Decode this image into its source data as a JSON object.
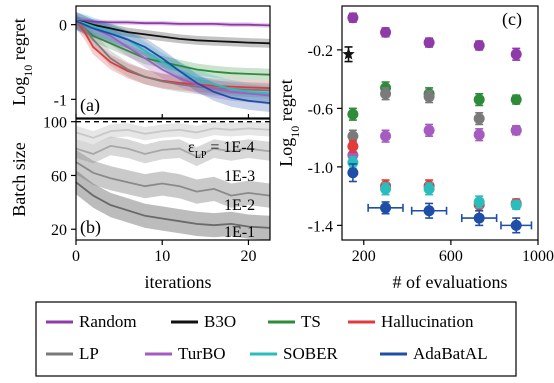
{
  "colors": {
    "Random": "#8e3aa8",
    "B3O": "#111111",
    "TS": "#2e8b3a",
    "Hallucination": "#e03a3a",
    "LP": "#7a7a7a",
    "TurBO": "#a55bbf",
    "SOBER": "#2bbcbc",
    "AdaBatAL": "#1f4ea8"
  },
  "legend": {
    "entries": [
      "Random",
      "B3O",
      "TS",
      "Hallucination",
      "LP",
      "TurBO",
      "SOBER",
      "AdaBatAL"
    ]
  },
  "chart_data": [
    {
      "id": "panel-a",
      "type": "line",
      "panel_label": "(a)",
      "ylabel": "Log10 regret",
      "ylabel_main": "Log",
      "ylabel_sub": "10",
      "ylabel_rest": " regret",
      "xlim": [
        0,
        22.5
      ],
      "ylim": [
        -1.25,
        0.25
      ],
      "yticks": [
        0,
        -1
      ],
      "ytick_labels": [
        "0",
        "-1"
      ],
      "shared_x_with": "panel-b",
      "series": [
        {
          "name": "Random",
          "x": [
            0,
            1,
            2,
            4,
            6,
            8,
            10,
            12,
            14,
            16,
            18,
            20,
            22.5
          ],
          "y": [
            0.05,
            0.05,
            0.04,
            0.03,
            0.03,
            0.02,
            0.02,
            0.01,
            0.01,
            0.01,
            0.0,
            0.0,
            -0.01
          ],
          "band": 0.03
        },
        {
          "name": "B3O",
          "x": [
            0,
            1,
            2,
            4,
            6,
            8,
            10,
            12,
            14,
            16,
            18,
            20,
            22.5
          ],
          "y": [
            0.05,
            0.03,
            0.0,
            -0.05,
            -0.1,
            -0.13,
            -0.16,
            -0.19,
            -0.21,
            -0.22,
            -0.23,
            -0.24,
            -0.25
          ],
          "band": 0.06
        },
        {
          "name": "TS",
          "x": [
            0,
            1,
            2,
            4,
            6,
            8,
            10,
            12,
            14,
            16,
            18,
            20,
            22.5
          ],
          "y": [
            0.05,
            -0.05,
            -0.15,
            -0.25,
            -0.35,
            -0.45,
            -0.5,
            -0.55,
            -0.6,
            -0.63,
            -0.65,
            -0.66,
            -0.67
          ],
          "band": 0.08
        },
        {
          "name": "Hallucination",
          "x": [
            0,
            1,
            2,
            4,
            6,
            8,
            10,
            12,
            14,
            16,
            18,
            20,
            22.5
          ],
          "y": [
            0.05,
            -0.1,
            -0.3,
            -0.5,
            -0.62,
            -0.7,
            -0.75,
            -0.78,
            -0.8,
            -0.82,
            -0.83,
            -0.84,
            -0.85
          ],
          "band": 0.1
        },
        {
          "name": "LP",
          "x": [
            0,
            1,
            2,
            4,
            6,
            8,
            10,
            12,
            14,
            16,
            18,
            20,
            22.5
          ],
          "y": [
            0.05,
            -0.05,
            -0.2,
            -0.45,
            -0.6,
            -0.7,
            -0.76,
            -0.8,
            -0.83,
            -0.85,
            -0.86,
            -0.87,
            -0.88
          ],
          "band": 0.1
        },
        {
          "name": "TurBO",
          "x": [
            0,
            1,
            2,
            4,
            6,
            8,
            10,
            12,
            14,
            16,
            18,
            20,
            22.5
          ],
          "y": [
            0.05,
            0.0,
            -0.05,
            -0.15,
            -0.3,
            -0.45,
            -0.6,
            -0.72,
            -0.8,
            -0.86,
            -0.9,
            -0.92,
            -0.95
          ],
          "band": 0.12
        },
        {
          "name": "SOBER",
          "x": [
            0,
            1,
            2,
            4,
            6,
            8,
            10,
            12,
            14,
            16,
            18,
            20,
            22.5
          ],
          "y": [
            0.05,
            0.02,
            -0.02,
            -0.1,
            -0.2,
            -0.35,
            -0.5,
            -0.62,
            -0.72,
            -0.8,
            -0.86,
            -0.9,
            -0.92
          ],
          "band": 0.12
        },
        {
          "name": "AdaBatAL",
          "x": [
            0,
            1,
            2,
            4,
            6,
            8,
            10,
            12,
            14,
            16,
            18,
            20,
            22.5
          ],
          "y": [
            0.05,
            0.0,
            -0.05,
            -0.12,
            -0.2,
            -0.3,
            -0.45,
            -0.62,
            -0.78,
            -0.9,
            -0.98,
            -1.02,
            -1.05
          ],
          "band": 0.12
        }
      ]
    },
    {
      "id": "panel-b",
      "type": "line",
      "panel_label": "(b)",
      "xlabel": "iterations",
      "ylabel": "Batch size",
      "xlim": [
        0,
        22.5
      ],
      "ylim": [
        12,
        102
      ],
      "xticks": [
        0,
        10,
        20
      ],
      "yticks": [
        100,
        60,
        20
      ],
      "reference_line": 100,
      "series": [
        {
          "name": "1E-4",
          "label_main": "ε",
          "label_sub": "LP",
          "label_rest": " = 1E-4",
          "x": [
            0,
            2,
            4,
            6,
            8,
            10,
            12,
            14,
            16,
            18,
            20,
            22.5
          ],
          "y": [
            92,
            88,
            93,
            94,
            91,
            93,
            94,
            92,
            95,
            94,
            95,
            94
          ],
          "band": 5
        },
        {
          "name": "1E-3",
          "x": [
            0,
            2,
            4,
            6,
            8,
            10,
            12,
            14,
            16,
            18,
            20,
            22.5
          ],
          "y": [
            80,
            76,
            82,
            80,
            76,
            79,
            80,
            74,
            80,
            78,
            80,
            78
          ],
          "band": 7
        },
        {
          "name": "1E-2",
          "x": [
            0,
            2,
            4,
            6,
            8,
            10,
            12,
            14,
            16,
            18,
            20,
            22.5
          ],
          "y": [
            70,
            62,
            58,
            55,
            52,
            54,
            52,
            48,
            50,
            45,
            47,
            45
          ],
          "band": 9
        },
        {
          "name": "1E-1",
          "x": [
            0,
            2,
            4,
            6,
            8,
            10,
            12,
            14,
            16,
            18,
            20,
            22.5
          ],
          "y": [
            55,
            45,
            38,
            34,
            30,
            28,
            26,
            24,
            23,
            24,
            22,
            21
          ],
          "band": 9
        }
      ]
    },
    {
      "id": "panel-c",
      "type": "scatter",
      "panel_label": "(c)",
      "xlabel": "# of evaluations",
      "ylabel": "Log10 regret",
      "ylabel_main": "Log",
      "ylabel_sub": "10",
      "ylabel_rest": " regret",
      "xlim": [
        100,
        1000
      ],
      "ylim": [
        -1.5,
        0.1
      ],
      "xticks": [
        200,
        600,
        1000
      ],
      "yticks": [
        -0.2,
        -0.6,
        -1.0,
        -1.4
      ],
      "ytick_labels": [
        "-0.2",
        "-0.6",
        "-1.0",
        "-1.4"
      ],
      "series": [
        {
          "name": "B3O",
          "marker": "star",
          "points": [
            {
              "x": 130,
              "y": -0.23,
              "yerr": 0.05
            }
          ]
        },
        {
          "name": "Random",
          "points": [
            {
              "x": 150,
              "y": 0.02,
              "yerr": 0.03
            },
            {
              "x": 300,
              "y": -0.08,
              "yerr": 0.03
            },
            {
              "x": 500,
              "y": -0.15,
              "yerr": 0.03
            },
            {
              "x": 730,
              "y": -0.17,
              "yerr": 0.03
            },
            {
              "x": 900,
              "y": -0.23,
              "yerr": 0.04
            }
          ]
        },
        {
          "name": "TS",
          "points": [
            {
              "x": 150,
              "y": -0.64,
              "yerr": 0.04
            },
            {
              "x": 300,
              "y": -0.46,
              "yerr": 0.04
            },
            {
              "x": 500,
              "y": -0.5,
              "yerr": 0.04
            },
            {
              "x": 730,
              "y": -0.54,
              "yerr": 0.04
            },
            {
              "x": 900,
              "y": -0.54,
              "yerr": 0.03
            }
          ]
        },
        {
          "name": "LP",
          "points": [
            {
              "x": 150,
              "y": -0.79,
              "yerr": 0.04
            },
            {
              "x": 300,
              "y": -0.5,
              "yerr": 0.04
            },
            {
              "x": 500,
              "y": -0.52,
              "yerr": 0.04
            },
            {
              "x": 730,
              "y": -0.67,
              "yerr": 0.04
            },
            {
              "x": 900,
              "y": -0.75,
              "yerr": 0.03
            }
          ]
        },
        {
          "name": "TurBO",
          "points": [
            {
              "x": 150,
              "y": -0.92,
              "yerr": 0.04
            },
            {
              "x": 300,
              "y": -0.79,
              "yerr": 0.04
            },
            {
              "x": 500,
              "y": -0.75,
              "yerr": 0.04
            },
            {
              "x": 730,
              "y": -0.78,
              "yerr": 0.04
            },
            {
              "x": 900,
              "y": -0.75,
              "yerr": 0.03
            }
          ]
        },
        {
          "name": "Hallucination",
          "points": [
            {
              "x": 150,
              "y": -0.86,
              "yerr": 0.04
            },
            {
              "x": 300,
              "y": -1.13,
              "yerr": 0.04
            },
            {
              "x": 500,
              "y": -1.13,
              "yerr": 0.04
            },
            {
              "x": 730,
              "y": -1.26,
              "yerr": 0.04
            },
            {
              "x": 900,
              "y": -1.25,
              "yerr": 0.03
            }
          ]
        },
        {
          "name": "SOBER",
          "points": [
            {
              "x": 150,
              "y": -0.97,
              "yerr": 0.04
            },
            {
              "x": 300,
              "y": -1.15,
              "yerr": 0.04
            },
            {
              "x": 500,
              "y": -1.15,
              "yerr": 0.04
            },
            {
              "x": 730,
              "y": -1.24,
              "yerr": 0.04
            },
            {
              "x": 900,
              "y": -1.26,
              "yerr": 0.03
            }
          ]
        },
        {
          "name": "AdaBatAL",
          "points": [
            {
              "x": 150,
              "y": -1.04,
              "yerr": 0.06
            },
            {
              "x": 300,
              "y": -1.28,
              "yerr": 0.04,
              "xerr": 80
            },
            {
              "x": 500,
              "y": -1.3,
              "yerr": 0.05,
              "xerr": 80
            },
            {
              "x": 730,
              "y": -1.35,
              "yerr": 0.05,
              "xerr": 80
            },
            {
              "x": 900,
              "y": -1.4,
              "yerr": 0.05,
              "xerr": 70
            }
          ]
        }
      ]
    }
  ]
}
